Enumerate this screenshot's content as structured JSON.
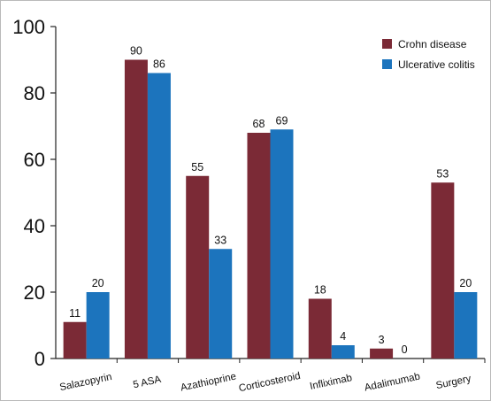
{
  "chart_data": {
    "type": "bar",
    "title": "",
    "xlabel": "",
    "ylabel": "",
    "ylim": [
      0,
      100
    ],
    "yticks": [
      0,
      20,
      40,
      60,
      80,
      100
    ],
    "grid": false,
    "legend_position": "top-right",
    "categories": [
      "Salazopyrin",
      "5 ASA",
      "Azathioprine",
      "Corticosteroid",
      "Infliximab",
      "Adalimumab",
      "Surgery"
    ],
    "series": [
      {
        "name": "Crohn disease",
        "color": "#7b2a36",
        "values": [
          11,
          90,
          55,
          68,
          18,
          3,
          53
        ]
      },
      {
        "name": "Ulcerative colitis",
        "color": "#1c74bd",
        "values": [
          20,
          86,
          33,
          69,
          4,
          0,
          20
        ]
      }
    ]
  }
}
